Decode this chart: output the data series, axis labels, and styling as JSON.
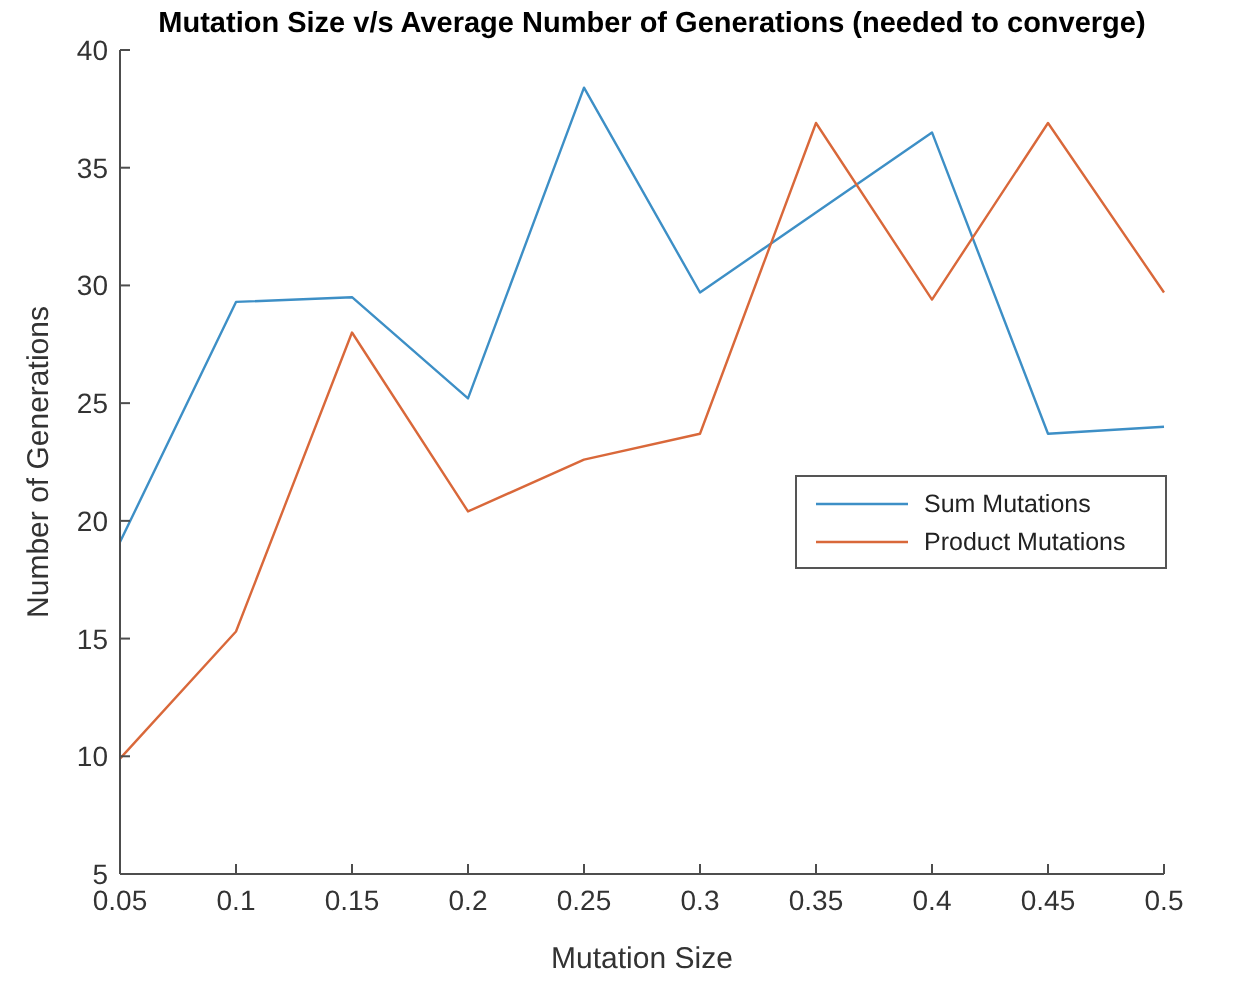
{
  "chart_data": {
    "type": "line",
    "title": "Mutation Size v/s Average Number of Generations (needed to converge)",
    "xlabel": "Mutation Size",
    "ylabel": "Number of Generations",
    "x": [
      0.05,
      0.1,
      0.15,
      0.2,
      0.25,
      0.3,
      0.35,
      0.4,
      0.45,
      0.5
    ],
    "series": [
      {
        "name": "Sum Mutations",
        "color": "#3d8fc6",
        "values": [
          19.1,
          29.3,
          29.5,
          25.2,
          38.4,
          29.7,
          33.1,
          36.5,
          23.7,
          24.0
        ]
      },
      {
        "name": "Product Mutations",
        "color": "#d9683a",
        "values": [
          9.9,
          15.3,
          28.0,
          20.4,
          22.6,
          23.7,
          36.9,
          29.4,
          36.9,
          29.7
        ]
      }
    ],
    "xlim": [
      0.05,
      0.5
    ],
    "xticks": [
      0.05,
      0.1,
      0.15,
      0.2,
      0.25,
      0.3,
      0.35,
      0.4,
      0.45,
      0.5
    ],
    "ylim": [
      5,
      40
    ],
    "yticks": [
      5,
      10,
      15,
      20,
      25,
      30,
      35,
      40
    ],
    "grid": false,
    "legend": "right",
    "marker": "none",
    "line_style": "solid"
  }
}
